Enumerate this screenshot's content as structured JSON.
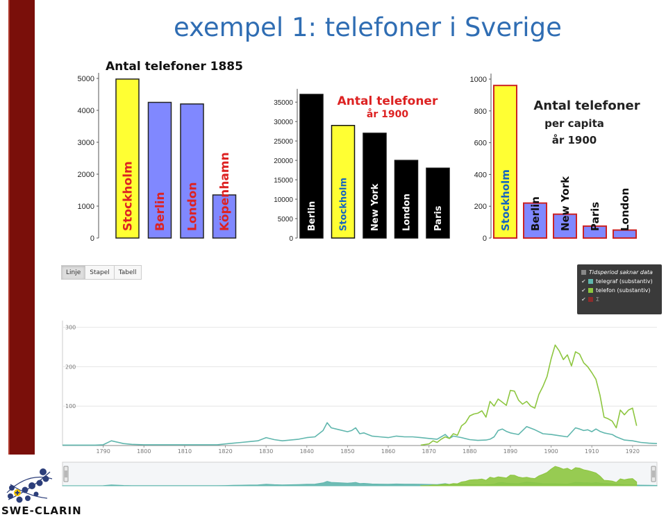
{
  "slide": {
    "title": "exempel 1: telefoner i Sverige",
    "logo_text": "SWE-CLARIN"
  },
  "chart_data": [
    {
      "type": "bar",
      "title": "Antal telefoner 1885",
      "categories": [
        "Stockholm",
        "Berlin",
        "London",
        "Köpenhamn"
      ],
      "values": [
        4980,
        4250,
        4200,
        1350
      ],
      "colors": [
        "#ffff33",
        "#8088ff",
        "#8088ff",
        "#8088ff"
      ],
      "ylim": [
        0,
        5000
      ],
      "yticks": [
        0,
        1000,
        2000,
        3000,
        4000,
        5000
      ],
      "tick_labels": [
        "0",
        "1000",
        "2000",
        "3000",
        "4000",
        "5000"
      ],
      "label_color": "#dd2222",
      "grid": false
    },
    {
      "type": "bar",
      "title": "Antal telefoner",
      "subtitle": "år 1900",
      "categories": [
        "Berlin",
        "Stockholm",
        "New York",
        "London",
        "Paris"
      ],
      "values": [
        37000,
        29000,
        27000,
        20000,
        18000
      ],
      "colors": [
        "#000000",
        "#ffff33",
        "#000000",
        "#000000",
        "#000000"
      ],
      "ylim": [
        0,
        37000
      ],
      "yticks": [
        0,
        5000,
        10000,
        15000,
        20000,
        25000,
        30000,
        35000
      ],
      "tick_labels": [
        "0",
        "5000",
        "10000",
        "15000",
        "20000",
        "25000",
        "30000",
        "35000"
      ],
      "label_colors": [
        "#ffffff",
        "#1565c0",
        "#ffffff",
        "#ffffff",
        "#ffffff"
      ],
      "grid": false
    },
    {
      "type": "bar",
      "title": "Antal telefoner",
      "subtitle": "per capita",
      "subtitle2": "år 1900",
      "categories": [
        "Stockholm",
        "Berlin",
        "New York",
        "Paris",
        "London"
      ],
      "values": [
        960,
        220,
        150,
        75,
        50
      ],
      "colors": [
        "#ffff33",
        "#8088ff",
        "#8088ff",
        "#8088ff",
        "#8088ff"
      ],
      "ylim": [
        0,
        1000
      ],
      "yticks": [
        0,
        200,
        400,
        600,
        800,
        1000
      ],
      "tick_labels": [
        "0",
        "200",
        "400",
        "600",
        "800",
        "1000"
      ],
      "label_colors": [
        "#1565c0",
        "#111111",
        "#111111",
        "#111111",
        "#111111"
      ],
      "grid": false
    },
    {
      "type": "line",
      "xlim": [
        1780,
        1926
      ],
      "ylim": [
        0,
        310
      ],
      "xticks": [
        1790,
        1800,
        1810,
        1820,
        1830,
        1840,
        1850,
        1860,
        1870,
        1880,
        1890,
        1900,
        1910,
        1920
      ],
      "xtick_labels": [
        "1790",
        "1800",
        "1810",
        "1820",
        "1830",
        "1840",
        "1850",
        "1860",
        "1870",
        "1880",
        "1890",
        "1900",
        "1910",
        "1920"
      ],
      "yticks": [
        100,
        200,
        300
      ],
      "ytick_labels": [
        "100",
        "200",
        "300"
      ],
      "grid": true,
      "series": [
        {
          "name": "telegraf (substantiv)",
          "color": "#5fb6ad",
          "points": [
            [
              1780,
              1
            ],
            [
              1785,
              1
            ],
            [
              1788,
              1
            ],
            [
              1790,
              2
            ],
            [
              1792,
              12
            ],
            [
              1795,
              5
            ],
            [
              1797,
              3
            ],
            [
              1800,
              2
            ],
            [
              1805,
              2
            ],
            [
              1810,
              2
            ],
            [
              1815,
              2
            ],
            [
              1818,
              2
            ],
            [
              1820,
              4
            ],
            [
              1822,
              6
            ],
            [
              1824,
              8
            ],
            [
              1826,
              10
            ],
            [
              1828,
              12
            ],
            [
              1830,
              20
            ],
            [
              1832,
              15
            ],
            [
              1834,
              12
            ],
            [
              1836,
              14
            ],
            [
              1838,
              16
            ],
            [
              1840,
              20
            ],
            [
              1842,
              22
            ],
            [
              1844,
              38
            ],
            [
              1845,
              58
            ],
            [
              1846,
              45
            ],
            [
              1848,
              40
            ],
            [
              1850,
              35
            ],
            [
              1851,
              38
            ],
            [
              1852,
              45
            ],
            [
              1853,
              30
            ],
            [
              1854,
              32
            ],
            [
              1855,
              28
            ],
            [
              1856,
              24
            ],
            [
              1858,
              22
            ],
            [
              1860,
              20
            ],
            [
              1862,
              24
            ],
            [
              1864,
              22
            ],
            [
              1866,
              22
            ],
            [
              1868,
              20
            ],
            [
              1870,
              18
            ],
            [
              1872,
              16
            ],
            [
              1874,
              28
            ],
            [
              1875,
              18
            ],
            [
              1876,
              24
            ],
            [
              1878,
              20
            ],
            [
              1880,
              15
            ],
            [
              1882,
              13
            ],
            [
              1884,
              14
            ],
            [
              1885,
              16
            ],
            [
              1886,
              22
            ],
            [
              1887,
              38
            ],
            [
              1888,
              42
            ],
            [
              1889,
              36
            ],
            [
              1890,
              32
            ],
            [
              1891,
              30
            ],
            [
              1892,
              28
            ],
            [
              1893,
              38
            ],
            [
              1894,
              48
            ],
            [
              1896,
              40
            ],
            [
              1898,
              30
            ],
            [
              1900,
              28
            ],
            [
              1902,
              25
            ],
            [
              1904,
              22
            ],
            [
              1906,
              45
            ],
            [
              1907,
              42
            ],
            [
              1908,
              38
            ],
            [
              1909,
              40
            ],
            [
              1910,
              35
            ],
            [
              1911,
              42
            ],
            [
              1912,
              36
            ],
            [
              1913,
              32
            ],
            [
              1914,
              30
            ],
            [
              1915,
              28
            ],
            [
              1916,
              22
            ],
            [
              1918,
              14
            ],
            [
              1920,
              12
            ],
            [
              1922,
              8
            ],
            [
              1924,
              6
            ],
            [
              1926,
              5
            ]
          ]
        },
        {
          "name": "telefon (substantiv)",
          "color": "#8dc63f",
          "points": [
            [
              1868,
              1
            ],
            [
              1870,
              4
            ],
            [
              1871,
              12
            ],
            [
              1872,
              8
            ],
            [
              1873,
              16
            ],
            [
              1874,
              22
            ],
            [
              1875,
              18
            ],
            [
              1876,
              30
            ],
            [
              1877,
              26
            ],
            [
              1878,
              50
            ],
            [
              1879,
              58
            ],
            [
              1880,
              75
            ],
            [
              1881,
              80
            ],
            [
              1882,
              82
            ],
            [
              1883,
              88
            ],
            [
              1884,
              72
            ],
            [
              1885,
              112
            ],
            [
              1886,
              100
            ],
            [
              1887,
              118
            ],
            [
              1888,
              110
            ],
            [
              1889,
              102
            ],
            [
              1890,
              140
            ],
            [
              1891,
              138
            ],
            [
              1892,
              115
            ],
            [
              1893,
              105
            ],
            [
              1894,
              112
            ],
            [
              1895,
              100
            ],
            [
              1896,
              95
            ],
            [
              1897,
              130
            ],
            [
              1898,
              150
            ],
            [
              1899,
              175
            ],
            [
              1900,
              220
            ],
            [
              1901,
              255
            ],
            [
              1902,
              240
            ],
            [
              1903,
              218
            ],
            [
              1904,
              230
            ],
            [
              1905,
              202
            ],
            [
              1906,
              238
            ],
            [
              1907,
              232
            ],
            [
              1908,
              210
            ],
            [
              1909,
              200
            ],
            [
              1910,
              185
            ],
            [
              1911,
              168
            ],
            [
              1912,
              128
            ],
            [
              1913,
              72
            ],
            [
              1914,
              68
            ],
            [
              1915,
              62
            ],
            [
              1916,
              45
            ],
            [
              1917,
              90
            ],
            [
              1918,
              78
            ],
            [
              1919,
              90
            ],
            [
              1920,
              95
            ],
            [
              1921,
              50
            ]
          ]
        }
      ]
    }
  ],
  "view_tabs": [
    {
      "label": "Linje",
      "active": true
    },
    {
      "label": "Stapel",
      "active": false
    },
    {
      "label": "Tabell",
      "active": false
    }
  ],
  "legend": {
    "header": "Tidsperiod saknar data",
    "header_color": "#888888",
    "items": [
      {
        "label": "telegraf (substantiv)",
        "color": "#5fb6ad",
        "enabled": true
      },
      {
        "label": "telefon (substantiv)",
        "color": "#8dc63f",
        "enabled": true
      },
      {
        "label": "Σ",
        "color": "#8b2b2b",
        "enabled": false
      }
    ]
  }
}
